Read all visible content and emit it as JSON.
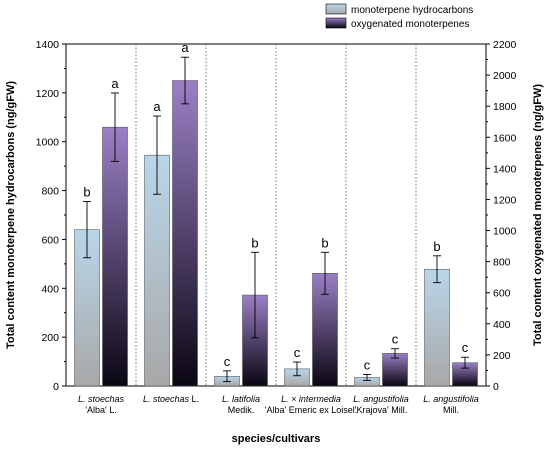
{
  "chart_data": {
    "type": "bar",
    "title": "",
    "xlabel": "species/cultivars",
    "ylabel_left": "Total content monoterpene hydrocarbons (ng/gFW)",
    "ylabel_right": "Total content oxygenated monoterpenes (ng/gFW)",
    "ylim_left": [
      0,
      1400
    ],
    "ylim_right": [
      0,
      2200
    ],
    "yticks_left": [
      "0",
      "200",
      "400",
      "600",
      "800",
      "1000",
      "1200",
      "1400"
    ],
    "yticks_right": [
      "0",
      "200",
      "400",
      "600",
      "800",
      "1000",
      "1200",
      "1400",
      "1600",
      "1800",
      "2000",
      "2200"
    ],
    "grid": false,
    "legend_position": "top-right",
    "categories": [
      {
        "label": "L. stoechas 'Alba' L.",
        "line1_italic": "L. stoechas",
        "line1_rest": "",
        "line2": "'Alba' L."
      },
      {
        "label": "L. stoechas L.",
        "line1_italic": "L. stoechas",
        "line1_rest": " L.",
        "line2": ""
      },
      {
        "label": "L. latifolia Medik.",
        "line1_italic": "L. latifolia",
        "line1_rest": "",
        "line2": "Medik."
      },
      {
        "label": "L. × intermedia 'Alba' Emeric ex Loisel.",
        "line1_italic": "L. × intermedia",
        "line1_rest": "",
        "line2": "'Alba' Emeric ex Loisel."
      },
      {
        "label": "L. angustifolia 'Krajova' Mill.",
        "line1_italic": "L. angustifolia",
        "line1_rest": "",
        "line2": "'Krajova' Mill."
      },
      {
        "label": "L. angustifolia Mill.",
        "line1_italic": "L. angustifolia",
        "line1_rest": "",
        "line2": "Mill."
      }
    ],
    "series": [
      {
        "name": "monoterpene hydrocarbons",
        "axis": "left",
        "color_top": "#b9d6ea",
        "color_bottom": "#a8a8a8",
        "values": [
          640,
          945,
          40,
          70,
          35,
          478
        ],
        "errors": [
          115,
          160,
          22,
          28,
          12,
          55
        ],
        "letters": [
          "b",
          "a",
          "c",
          "c",
          "c",
          "b"
        ]
      },
      {
        "name": "oxygenated monoterpenes",
        "axis": "right",
        "color_top": "#9b80c6",
        "color_bottom": "#0a0612",
        "values": [
          1665,
          1965,
          585,
          725,
          210,
          150
        ],
        "errors": [
          220,
          150,
          275,
          135,
          30,
          35
        ],
        "letters": [
          "a",
          "a",
          "b",
          "b",
          "c",
          "c"
        ]
      }
    ]
  }
}
